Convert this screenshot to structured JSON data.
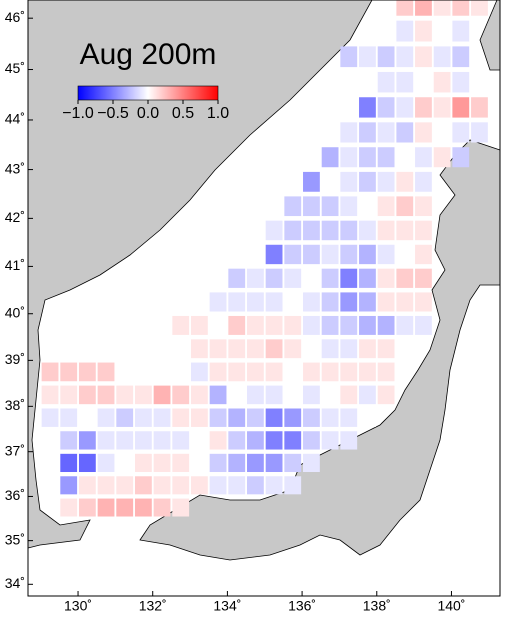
{
  "chart_data": {
    "type": "heatmap",
    "title": "Aug 200m",
    "xlim": [
      128.66,
      141.3
    ],
    "ylim": [
      33.73,
      46.35
    ],
    "xticks": [
      {
        "value": 130,
        "label": "130˚"
      },
      {
        "value": 132,
        "label": "132˚"
      },
      {
        "value": 134,
        "label": "134˚"
      },
      {
        "value": 136,
        "label": "136˚"
      },
      {
        "value": 138,
        "label": "138˚"
      },
      {
        "value": 140,
        "label": "140˚"
      }
    ],
    "yticks": [
      {
        "value": 34,
        "label": "34˚"
      },
      {
        "value": 35,
        "label": "35˚"
      },
      {
        "value": 36,
        "label": "36˚"
      },
      {
        "value": 37,
        "label": "37˚"
      },
      {
        "value": 38,
        "label": "38˚"
      },
      {
        "value": 39,
        "label": "39˚"
      },
      {
        "value": 40,
        "label": "40˚"
      },
      {
        "value": 41,
        "label": "41˚"
      },
      {
        "value": 42,
        "label": "42˚"
      },
      {
        "value": 43,
        "label": "43˚"
      },
      {
        "value": 44,
        "label": "44˚"
      },
      {
        "value": 45,
        "label": "45˚"
      },
      {
        "value": 46,
        "label": "46˚"
      }
    ],
    "colorbar": {
      "range": [
        -1,
        1
      ],
      "colors": [
        "#0000ff",
        "#ffffff",
        "#ff0000"
      ],
      "ticks": [
        {
          "value": -1,
          "label": "−1.0"
        },
        {
          "value": -0.5,
          "label": "−0.5"
        },
        {
          "value": 0,
          "label": "0.0"
        },
        {
          "value": 0.5,
          "label": "0.5"
        },
        {
          "value": 1,
          "label": "1.0"
        }
      ]
    },
    "cells": [
      {
        "lat": 46.25,
        "lon_start": 138.75,
        "values": [
          0.2,
          0.3,
          0.1,
          0.2,
          0.1
        ]
      },
      {
        "lat": 45.75,
        "lon_start": 138.75,
        "values": [
          -0.1,
          0.1,
          0,
          -0.1
        ]
      },
      {
        "lat": 45.25,
        "lon_start": 137.25,
        "values": [
          -0.2,
          -0.1,
          -0.2,
          -0.1,
          0.1,
          -0.1,
          -0.2
        ]
      },
      {
        "lat": 44.75,
        "lon_start": 138.25,
        "values": [
          -0.1,
          -0.1,
          0,
          0.1,
          -0.1
        ]
      },
      {
        "lat": 44.25,
        "lon_start": 137.75,
        "values": [
          -0.5,
          -0.2,
          -0.1,
          0.2,
          0.1,
          0.4,
          0.2
        ]
      },
      {
        "lat": 43.75,
        "lon_start": 137.25,
        "values": [
          -0.1,
          -0.2,
          -0.1,
          -0.2,
          0.1,
          0,
          -0.1,
          -0.1
        ]
      },
      {
        "lat": 43.25,
        "lon_start": 136.75,
        "values": [
          -0.3,
          -0.1,
          -0.2,
          -0.2,
          0,
          -0.1,
          0.1,
          -0.2
        ]
      },
      {
        "lat": 42.75,
        "lon_start": 136.25,
        "values": [
          -0.4,
          0,
          -0.1,
          -0.2,
          -0.1,
          0.1,
          -0.1
        ]
      },
      {
        "lat": 42.25,
        "lon_start": 135.75,
        "values": [
          -0.2,
          -0.2,
          -0.2,
          -0.1,
          0,
          0.1,
          0.2,
          0.1
        ]
      },
      {
        "lat": 41.75,
        "lon_start": 135.25,
        "values": [
          -0.1,
          -0.2,
          -0.2,
          -0.2,
          -0.2,
          -0.1,
          0.1,
          0.1,
          0.1
        ]
      },
      {
        "lat": 41.25,
        "lon_start": 135.25,
        "values": [
          -0.5,
          -0.2,
          -0.2,
          -0.1,
          -0.2,
          -0.3,
          -0.1,
          0,
          0.1
        ]
      },
      {
        "lat": 40.75,
        "lon_start": 134.25,
        "values": [
          -0.2,
          -0.1,
          -0.2,
          -0.1,
          0,
          -0.2,
          -0.5,
          -0.3,
          0.1,
          0.2,
          0.2
        ]
      },
      {
        "lat": 40.25,
        "lon_start": 133.75,
        "values": [
          -0.1,
          -0.1,
          -0.1,
          -0.1,
          0,
          -0.1,
          -0.2,
          -0.4,
          -0.3,
          0.1,
          0.1,
          0.1
        ]
      },
      {
        "lat": 39.75,
        "lon_start": 132.75,
        "values": [
          0.1,
          0.1,
          0,
          0.2,
          0.1,
          0.1,
          0.1,
          -0.1,
          -0.2,
          -0.2,
          -0.3,
          -0.3,
          -0.1,
          -0.1
        ]
      },
      {
        "lat": 39.25,
        "lon_start": 132.75,
        "values": [
          0,
          0.1,
          0.1,
          0.1,
          0.1,
          0.2,
          0.1,
          0,
          -0.1,
          -0.1,
          0.1,
          0.1
        ]
      },
      {
        "lat": 38.75,
        "lon_start": 129.25,
        "values": [
          0.2,
          0.2,
          0.2,
          0.2,
          0
        ]
      },
      {
        "lat": 38.75,
        "lon_start": 132.75,
        "values": [
          0,
          -0.1,
          0.1,
          0.1,
          0.1,
          0.1,
          0,
          0.1,
          0.1,
          0.1,
          0.1,
          0.1
        ]
      },
      {
        "lat": 38.25,
        "lon_start": 129.25,
        "values": [
          0.1,
          0.1,
          0.2,
          0.2,
          0.1,
          0.1,
          0.3,
          0.2,
          0.1,
          -0.3,
          0,
          -0.1,
          -0.1,
          0,
          -0.1,
          0,
          0.1,
          -0.1,
          0.1
        ]
      },
      {
        "lat": 37.75,
        "lon_start": 129.25,
        "values": [
          -0.1,
          -0.1,
          0,
          -0.1,
          -0.2,
          -0.1,
          -0.1,
          0.1,
          0.1,
          -0.2,
          -0.3,
          -0.2,
          -0.5,
          -0.4,
          -0.2,
          -0.1,
          -0.1,
          0
        ]
      },
      {
        "lat": 37.25,
        "lon_start": 129.75,
        "values": [
          -0.2,
          -0.4,
          -0.1,
          -0.1,
          -0.1,
          -0.1,
          -0.1,
          0,
          0.1,
          -0.2,
          -0.3,
          -0.5,
          -0.5,
          -0.2,
          -0.1,
          -0.1
        ]
      },
      {
        "lat": 36.75,
        "lon_start": 129.75,
        "values": [
          -0.6,
          -0.6,
          -0.1,
          0,
          0.1,
          0.1,
          0.1,
          0,
          -0.2,
          -0.3,
          -0.4,
          -0.4,
          -0.2,
          -0.1
        ]
      },
      {
        "lat": 36.25,
        "lon_start": 129.75,
        "values": [
          -0.4,
          0.1,
          0.1,
          0.1,
          0.2,
          0.1,
          0.1,
          0.1
        ]
      },
      {
        "lat": 36.25,
        "lon_start": 133.75,
        "values": [
          -0.1,
          -0.1,
          -0.2,
          -0.1,
          -0.1
        ]
      },
      {
        "lat": 35.75,
        "lon_start": 129.75,
        "values": [
          0.1,
          0.2,
          0.3,
          0.3,
          0.3,
          0.2,
          0.1
        ]
      }
    ]
  }
}
